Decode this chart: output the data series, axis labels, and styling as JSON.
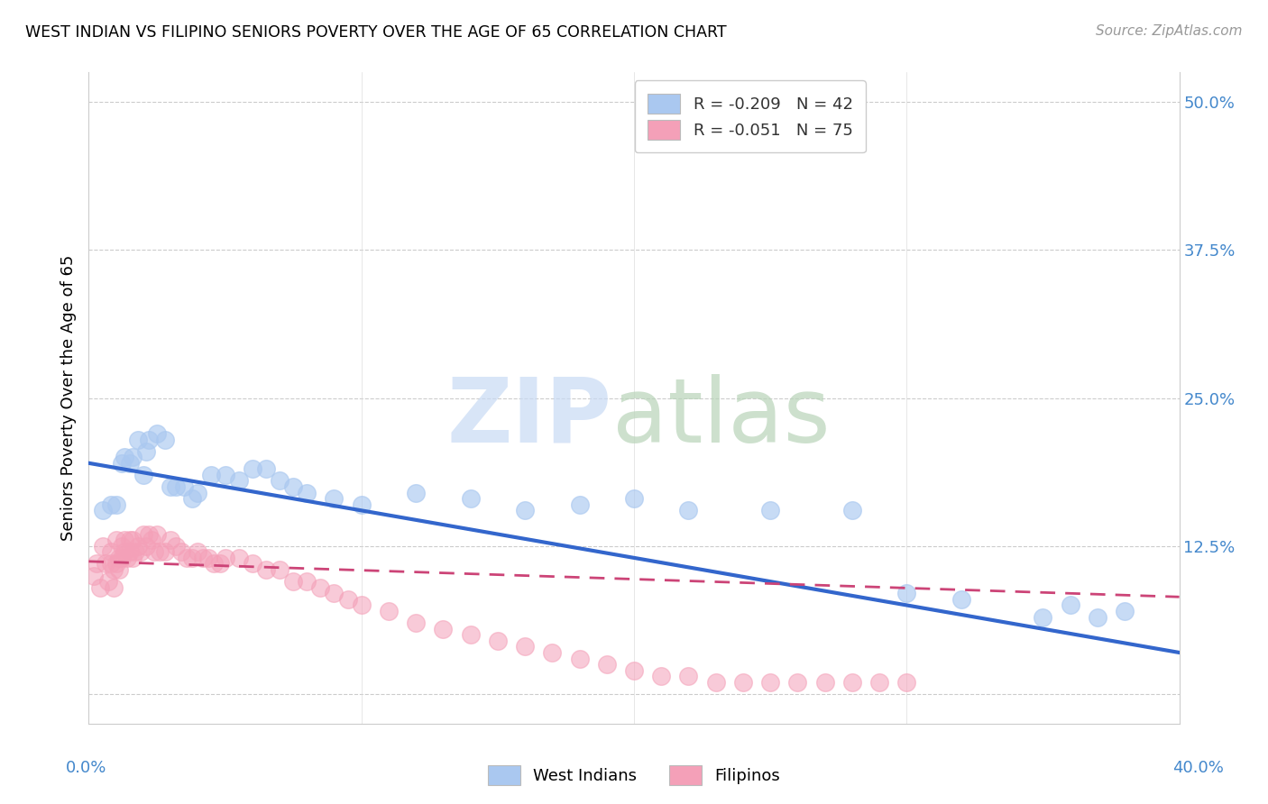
{
  "title": "WEST INDIAN VS FILIPINO SENIORS POVERTY OVER THE AGE OF 65 CORRELATION CHART",
  "source": "Source: ZipAtlas.com",
  "ylabel": "Seniors Poverty Over the Age of 65",
  "yticks": [
    0.0,
    0.125,
    0.25,
    0.375,
    0.5
  ],
  "ytick_labels": [
    "",
    "12.5%",
    "25.0%",
    "37.5%",
    "50.0%"
  ],
  "xlim": [
    0.0,
    0.4
  ],
  "ylim": [
    -0.025,
    0.525
  ],
  "legend_entry1": "R = -0.209   N = 42",
  "legend_entry2": "R = -0.051   N = 75",
  "legend_label1": "West Indians",
  "legend_label2": "Filipinos",
  "west_indian_color": "#aac8f0",
  "filipino_color": "#f4a0b8",
  "west_indian_line_color": "#3366cc",
  "filipino_line_color": "#cc4477",
  "wi_line_start": 0.195,
  "wi_line_end": 0.035,
  "fil_line_start": 0.112,
  "fil_line_end": 0.082,
  "west_indians_x": [
    0.005,
    0.008,
    0.01,
    0.012,
    0.013,
    0.015,
    0.016,
    0.018,
    0.02,
    0.021,
    0.022,
    0.025,
    0.028,
    0.03,
    0.032,
    0.035,
    0.038,
    0.04,
    0.045,
    0.05,
    0.055,
    0.06,
    0.065,
    0.07,
    0.075,
    0.08,
    0.09,
    0.1,
    0.12,
    0.14,
    0.16,
    0.18,
    0.2,
    0.22,
    0.25,
    0.28,
    0.3,
    0.32,
    0.35,
    0.36,
    0.37,
    0.38
  ],
  "west_indians_y": [
    0.155,
    0.16,
    0.16,
    0.195,
    0.2,
    0.195,
    0.2,
    0.215,
    0.185,
    0.205,
    0.215,
    0.22,
    0.215,
    0.175,
    0.175,
    0.175,
    0.165,
    0.17,
    0.185,
    0.185,
    0.18,
    0.19,
    0.19,
    0.18,
    0.175,
    0.17,
    0.165,
    0.16,
    0.17,
    0.165,
    0.155,
    0.16,
    0.165,
    0.155,
    0.155,
    0.155,
    0.085,
    0.08,
    0.065,
    0.075,
    0.065,
    0.07
  ],
  "filipinos_x": [
    0.002,
    0.003,
    0.004,
    0.005,
    0.006,
    0.007,
    0.008,
    0.008,
    0.009,
    0.009,
    0.01,
    0.01,
    0.011,
    0.011,
    0.012,
    0.012,
    0.013,
    0.013,
    0.014,
    0.015,
    0.015,
    0.016,
    0.016,
    0.017,
    0.018,
    0.019,
    0.02,
    0.021,
    0.022,
    0.023,
    0.024,
    0.025,
    0.026,
    0.028,
    0.03,
    0.032,
    0.034,
    0.036,
    0.038,
    0.04,
    0.042,
    0.044,
    0.046,
    0.048,
    0.05,
    0.055,
    0.06,
    0.065,
    0.07,
    0.075,
    0.08,
    0.085,
    0.09,
    0.095,
    0.1,
    0.11,
    0.12,
    0.13,
    0.14,
    0.15,
    0.16,
    0.17,
    0.18,
    0.19,
    0.2,
    0.21,
    0.22,
    0.23,
    0.24,
    0.25,
    0.26,
    0.27,
    0.28,
    0.29,
    0.3
  ],
  "filipinos_y": [
    0.1,
    0.11,
    0.09,
    0.125,
    0.11,
    0.095,
    0.11,
    0.12,
    0.09,
    0.105,
    0.11,
    0.13,
    0.105,
    0.115,
    0.115,
    0.125,
    0.12,
    0.13,
    0.115,
    0.12,
    0.13,
    0.115,
    0.13,
    0.12,
    0.125,
    0.12,
    0.135,
    0.125,
    0.135,
    0.13,
    0.12,
    0.135,
    0.12,
    0.12,
    0.13,
    0.125,
    0.12,
    0.115,
    0.115,
    0.12,
    0.115,
    0.115,
    0.11,
    0.11,
    0.115,
    0.115,
    0.11,
    0.105,
    0.105,
    0.095,
    0.095,
    0.09,
    0.085,
    0.08,
    0.075,
    0.07,
    0.06,
    0.055,
    0.05,
    0.045,
    0.04,
    0.035,
    0.03,
    0.025,
    0.02,
    0.015,
    0.015,
    0.01,
    0.01,
    0.01,
    0.01,
    0.01,
    0.01,
    0.01,
    0.01
  ]
}
